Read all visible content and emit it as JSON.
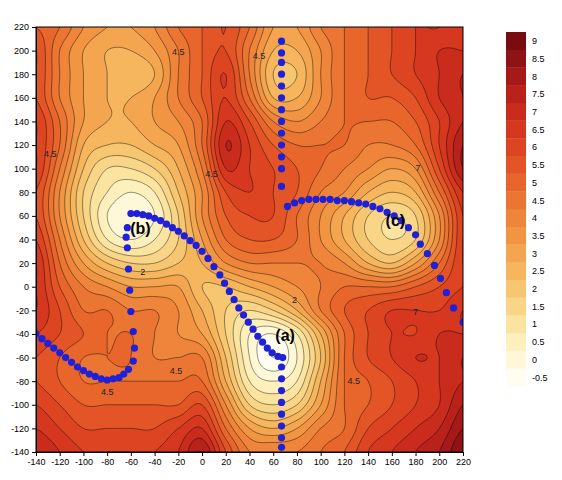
{
  "chart_data": {
    "type": "contour",
    "xlim": [
      -140,
      220
    ],
    "xticks": [
      -140,
      -120,
      -100,
      -80,
      -60,
      -40,
      -20,
      0,
      20,
      40,
      60,
      80,
      100,
      120,
      140,
      160,
      180,
      200,
      220
    ],
    "ylim": [
      -140,
      220
    ],
    "yticks": [
      -140,
      -120,
      -100,
      -80,
      -60,
      -40,
      -20,
      0,
      20,
      40,
      60,
      80,
      100,
      120,
      140,
      160,
      180,
      200,
      220
    ],
    "surface": {
      "x": [
        -140,
        -120,
        -100,
        -80,
        -60,
        -40,
        -20,
        0,
        20,
        40,
        60,
        80,
        100,
        120,
        140,
        160,
        180,
        200,
        220
      ],
      "y": [
        -140,
        -120,
        -100,
        -80,
        -60,
        -40,
        -20,
        0,
        20,
        40,
        60,
        80,
        100,
        120,
        140,
        160,
        180,
        200,
        220
      ],
      "z": [
        [
          7.5,
          7,
          6.5,
          6.5,
          6.5,
          6.5,
          7,
          8,
          6,
          4.5,
          4.5,
          4.5,
          5,
          5.5,
          6.5,
          7,
          7.5,
          8,
          9
        ],
        [
          7,
          6.5,
          6,
          6,
          6,
          6,
          6.5,
          7,
          5,
          3.5,
          3,
          3.5,
          4.5,
          5,
          6,
          6.5,
          7,
          7.5,
          8.5
        ],
        [
          6.5,
          6,
          5.5,
          5.5,
          5.5,
          5.5,
          5.5,
          6,
          4,
          2,
          1.5,
          2,
          3.5,
          5,
          5.5,
          6,
          6.5,
          7,
          8
        ],
        [
          6,
          5.5,
          5,
          5,
          5,
          5,
          5,
          5,
          3,
          1,
          0.5,
          1,
          3,
          5,
          5.5,
          6,
          6.5,
          7,
          7.5
        ],
        [
          6,
          5.5,
          5,
          5,
          5,
          4.5,
          4.5,
          4.5,
          2.5,
          0.5,
          -0.5,
          0.5,
          2.5,
          5,
          6,
          6.5,
          7,
          7,
          7.5
        ],
        [
          6.5,
          6,
          5.5,
          5,
          5,
          4.5,
          4,
          3.5,
          2,
          0.5,
          0,
          1,
          3,
          5,
          6,
          6.5,
          6.5,
          7,
          7
        ],
        [
          7,
          6,
          5,
          5,
          4.5,
          4.5,
          4,
          3,
          2,
          1.5,
          2,
          3,
          4.5,
          5.5,
          6,
          6.5,
          6.5,
          6.5,
          7
        ],
        [
          7,
          5.5,
          4.5,
          4,
          3.5,
          3.5,
          3.5,
          2.5,
          2.5,
          3,
          3.5,
          4,
          4.5,
          5,
          5,
          5,
          5.5,
          6,
          6.5
        ],
        [
          7,
          5,
          3.5,
          2.5,
          2,
          2,
          2.5,
          3,
          4,
          4.5,
          4.5,
          4.5,
          4.5,
          4,
          3,
          2.5,
          3.5,
          5,
          6.5
        ],
        [
          6.5,
          4.5,
          2.5,
          1,
          0.5,
          1,
          2,
          3.5,
          5,
          5.5,
          5.5,
          5,
          4,
          3,
          2,
          1.5,
          2,
          4,
          6.5
        ],
        [
          6,
          4,
          2,
          0.5,
          0,
          0.5,
          2,
          4,
          5.5,
          6,
          6,
          5,
          4,
          3,
          2,
          1.5,
          2,
          4,
          6.5
        ],
        [
          6,
          4,
          2,
          1,
          0.5,
          1,
          2.5,
          4,
          6,
          6.5,
          6,
          5.5,
          4.5,
          4,
          3,
          2.5,
          3,
          5,
          7
        ],
        [
          6.5,
          4.5,
          2.5,
          1.5,
          1.5,
          2,
          3,
          4.5,
          7,
          6.5,
          6,
          5.5,
          5,
          4.5,
          4,
          3.5,
          4,
          6,
          8
        ],
        [
          6.5,
          5,
          3,
          2.5,
          2.5,
          3,
          3.5,
          5,
          7.5,
          6.5,
          5.5,
          5,
          5,
          5,
          4.5,
          4.5,
          5,
          6.5,
          8
        ],
        [
          6.5,
          5,
          3.5,
          3,
          3,
          3.5,
          4,
          5,
          7,
          6,
          4.5,
          4,
          4.5,
          5,
          5,
          5,
          5.5,
          6.5,
          7.5
        ],
        [
          6,
          4.5,
          3.5,
          3,
          3,
          3.5,
          4.5,
          5.5,
          6.5,
          5,
          3,
          3,
          4,
          5,
          5.5,
          5.5,
          6,
          7,
          7.5
        ],
        [
          6,
          4.5,
          3.5,
          3,
          2.5,
          3,
          4.5,
          5.5,
          6.5,
          4.5,
          2.5,
          2.5,
          4,
          5,
          5.5,
          6,
          6.5,
          7,
          7.5
        ],
        [
          6,
          4.5,
          3.5,
          3,
          3,
          3.5,
          4.5,
          5.5,
          6,
          4.5,
          3,
          3,
          4,
          5,
          5.5,
          6,
          6.5,
          7,
          7
        ],
        [
          5.5,
          5,
          4,
          3.5,
          3.5,
          4,
          5,
          5.5,
          6,
          5,
          3.5,
          3.5,
          4.5,
          5,
          5.5,
          6,
          6.5,
          6.5,
          7
        ]
      ]
    },
    "colorbar": {
      "range": [
        -0.5,
        9
      ],
      "ticks": [
        -0.5,
        0,
        0.5,
        1,
        1.5,
        2,
        2.5,
        3,
        3.5,
        4,
        4.5,
        5,
        5.5,
        6,
        6.5,
        7,
        7.5,
        8,
        8.5,
        9
      ]
    },
    "colors": [
      "#fffdf0",
      "#fff8d8",
      "#fdf0bd",
      "#fbe3a0",
      "#f9d587",
      "#f7c671",
      "#f5b65e",
      "#f3a64f",
      "#f19543",
      "#ee853a",
      "#eb7532",
      "#e8652b",
      "#e35526",
      "#dd4522",
      "#d5381f",
      "#c92c1d",
      "#b9221b",
      "#a51a18",
      "#8f1314",
      "#7a0c10"
    ],
    "contour_labels": [
      {
        "value": 4.5,
        "x": -128,
        "y": 112
      },
      {
        "value": 4.5,
        "x": -20,
        "y": 198
      },
      {
        "value": 4.5,
        "x": 48,
        "y": 195
      },
      {
        "value": 4.5,
        "x": 8,
        "y": 95
      },
      {
        "value": 2,
        "x": -50,
        "y": 12
      },
      {
        "value": 2,
        "x": 78,
        "y": -12
      },
      {
        "value": 4.5,
        "x": -22,
        "y": -72
      },
      {
        "value": 4.5,
        "x": -80,
        "y": -90
      },
      {
        "value": 4.5,
        "x": 128,
        "y": -80
      },
      {
        "value": 7,
        "x": 180,
        "y": -22
      },
      {
        "value": 7,
        "x": 182,
        "y": 100
      }
    ],
    "annotations": [
      {
        "text": "(a)",
        "x": 70,
        "y": -42
      },
      {
        "text": "(b)",
        "x": -52,
        "y": 48
      },
      {
        "text": "(c)",
        "x": 163,
        "y": 55
      }
    ],
    "series": [
      {
        "type": "scatter",
        "color": "#2020d8",
        "marker": "circle",
        "x": [
          67,
          67,
          67,
          67,
          67,
          67,
          67,
          67,
          67,
          67,
          67,
          67,
          67
        ],
        "values": [
          208,
          198,
          190,
          180,
          170,
          160,
          150,
          140,
          130,
          120,
          110,
          100,
          85
        ]
      },
      {
        "type": "scatter",
        "color": "#2020d8",
        "marker": "circle",
        "x": [
          72,
          78,
          84,
          90,
          96,
          102,
          108,
          114,
          120,
          126,
          132,
          138,
          144,
          150,
          156,
          162,
          168,
          174,
          180,
          184,
          190,
          196,
          201,
          206,
          212,
          220
        ],
        "values": [
          68,
          71,
          73,
          74,
          74,
          74,
          74,
          73,
          73,
          72,
          71,
          70,
          68,
          66,
          63,
          60,
          56,
          50,
          44,
          36,
          28,
          18,
          7,
          -5,
          -18,
          -30
        ]
      },
      {
        "type": "scatter",
        "color": "#2020d8",
        "marker": "circle",
        "x": [
          -60,
          -55,
          -50,
          -45,
          -40,
          -35,
          -30,
          -25,
          -20,
          -15,
          -10,
          -5,
          0,
          5,
          10,
          15,
          19,
          23,
          27,
          31,
          35,
          39,
          43,
          47,
          51,
          55,
          59,
          64,
          68
        ],
        "values": [
          62,
          62,
          61,
          60,
          58,
          56,
          53,
          50,
          47,
          43,
          39,
          35,
          30,
          24,
          17,
          10,
          3,
          -4,
          -11,
          -18,
          -24,
          -30,
          -36,
          -42,
          -47,
          -52,
          -56,
          -59,
          -60
        ]
      },
      {
        "type": "scatter",
        "color": "#2020d8",
        "marker": "circle",
        "x": [
          67,
          67,
          67,
          67,
          67,
          67,
          67,
          67
        ],
        "values": [
          -68,
          -78,
          -88,
          -98,
          -108,
          -118,
          -128,
          -136
        ]
      },
      {
        "type": "scatter",
        "color": "#2020d8",
        "marker": "circle",
        "x": [
          -63,
          -64,
          -63,
          -62,
          -61,
          -60,
          -58,
          -57,
          -58,
          -62,
          -66,
          -70,
          -75,
          -80,
          -85,
          -90,
          -95,
          -100,
          -105,
          -110,
          -115,
          -120,
          -125,
          -130,
          -135,
          -140
        ],
        "values": [
          50,
          42,
          33,
          15,
          -3,
          -21,
          -38,
          -52,
          -63,
          -70,
          -74,
          -77,
          -78,
          -79,
          -78,
          -76,
          -74,
          -71,
          -68,
          -64,
          -60,
          -56,
          -52,
          -48,
          -44,
          -40
        ]
      }
    ]
  }
}
